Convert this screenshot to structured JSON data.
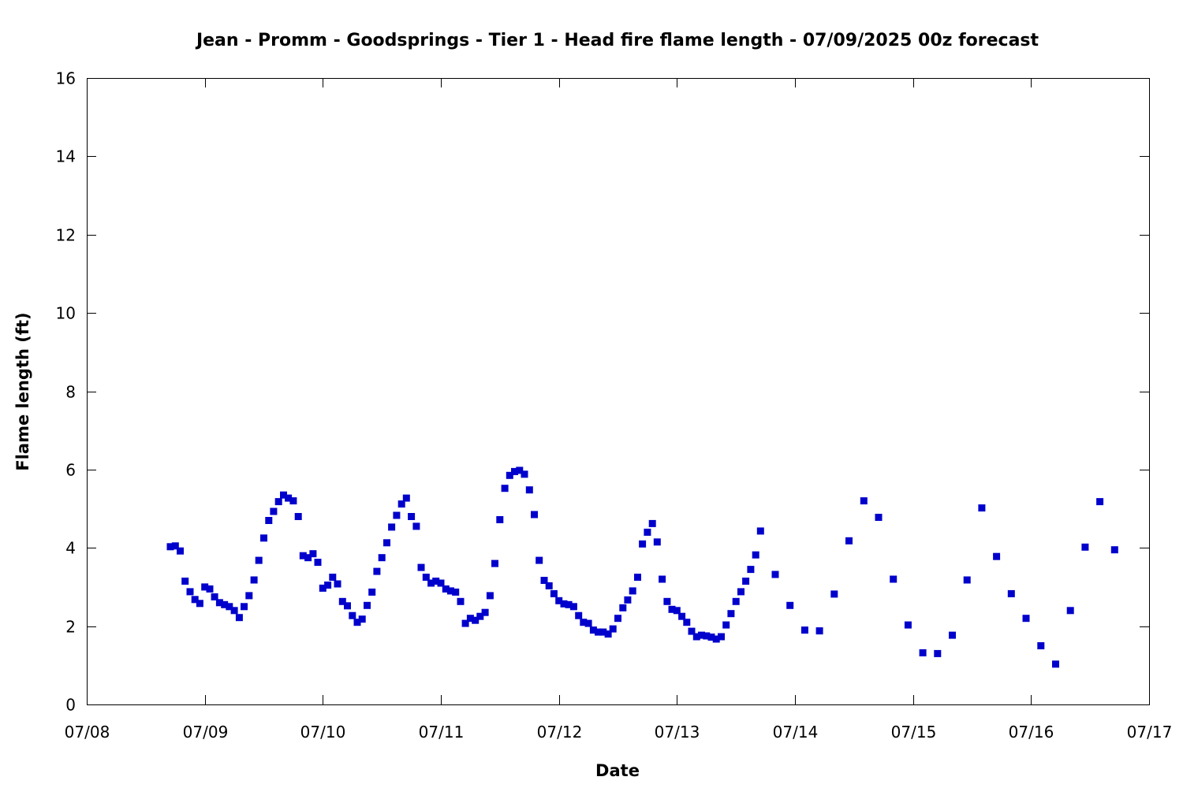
{
  "chart_data": {
    "type": "scatter",
    "title": "Jean - Promm - Goodsprings - Tier 1 - Head fire flame length - 07/09/2025 00z forecast",
    "xlabel": "Date",
    "ylabel": "Flame length (ft)",
    "xlim": [
      0,
      9
    ],
    "ylim": [
      0,
      16
    ],
    "x_ticks": [
      {
        "value": 0,
        "label": "07/08"
      },
      {
        "value": 1,
        "label": "07/09"
      },
      {
        "value": 2,
        "label": "07/10"
      },
      {
        "value": 3,
        "label": "07/11"
      },
      {
        "value": 4,
        "label": "07/12"
      },
      {
        "value": 5,
        "label": "07/13"
      },
      {
        "value": 6,
        "label": "07/14"
      },
      {
        "value": 7,
        "label": "07/15"
      },
      {
        "value": 8,
        "label": "07/16"
      },
      {
        "value": 9,
        "label": "07/17"
      }
    ],
    "y_ticks": [
      0,
      2,
      4,
      6,
      8,
      10,
      12,
      14,
      16
    ],
    "grid": false,
    "marker_color": "#0000cc",
    "x": [
      0.708,
      0.75,
      0.792,
      0.833,
      0.875,
      0.917,
      0.958,
      1.0,
      1.042,
      1.083,
      1.125,
      1.167,
      1.208,
      1.25,
      1.292,
      1.333,
      1.375,
      1.417,
      1.458,
      1.5,
      1.542,
      1.583,
      1.625,
      1.667,
      1.708,
      1.75,
      1.792,
      1.833,
      1.875,
      1.917,
      1.958,
      2.0,
      2.042,
      2.083,
      2.125,
      2.167,
      2.208,
      2.25,
      2.292,
      2.333,
      2.375,
      2.417,
      2.458,
      2.5,
      2.542,
      2.583,
      2.625,
      2.667,
      2.708,
      2.75,
      2.792,
      2.833,
      2.875,
      2.917,
      2.958,
      3.0,
      3.042,
      3.083,
      3.125,
      3.167,
      3.208,
      3.25,
      3.292,
      3.333,
      3.375,
      3.417,
      3.458,
      3.5,
      3.542,
      3.583,
      3.625,
      3.667,
      3.708,
      3.75,
      3.792,
      3.833,
      3.875,
      3.917,
      3.958,
      4.0,
      4.042,
      4.083,
      4.125,
      4.167,
      4.208,
      4.25,
      4.292,
      4.333,
      4.375,
      4.417,
      4.458,
      4.5,
      4.542,
      4.583,
      4.625,
      4.667,
      4.708,
      4.75,
      4.792,
      4.833,
      4.875,
      4.917,
      4.958,
      5.0,
      5.042,
      5.083,
      5.125,
      5.167,
      5.208,
      5.25,
      5.292,
      5.333,
      5.375,
      5.417,
      5.458,
      5.5,
      5.542,
      5.583,
      5.625,
      5.667,
      5.708,
      5.833,
      5.958,
      6.083,
      6.208,
      6.333,
      6.458,
      6.583,
      6.708,
      6.833,
      6.958,
      7.083,
      7.208,
      7.333,
      7.458,
      7.583,
      7.708,
      7.833,
      7.958,
      8.083,
      8.208,
      8.333,
      8.458,
      8.583,
      8.708
    ],
    "y": [
      4.03,
      4.05,
      3.92,
      3.15,
      2.88,
      2.68,
      2.58,
      3.0,
      2.95,
      2.75,
      2.6,
      2.55,
      2.5,
      2.4,
      2.22,
      2.5,
      2.78,
      3.18,
      3.68,
      4.25,
      4.7,
      4.93,
      5.18,
      5.35,
      5.27,
      5.2,
      4.8,
      3.8,
      3.75,
      3.85,
      3.63,
      2.97,
      3.05,
      3.25,
      3.08,
      2.63,
      2.52,
      2.27,
      2.1,
      2.18,
      2.53,
      2.87,
      3.4,
      3.75,
      4.13,
      4.53,
      4.83,
      5.12,
      5.27,
      4.8,
      4.55,
      3.5,
      3.25,
      3.1,
      3.15,
      3.1,
      2.95,
      2.9,
      2.87,
      2.63,
      2.07,
      2.2,
      2.15,
      2.25,
      2.35,
      2.78,
      3.6,
      4.72,
      5.52,
      5.85,
      5.95,
      5.98,
      5.88,
      5.48,
      4.85,
      3.68,
      3.17,
      3.03,
      2.83,
      2.65,
      2.57,
      2.55,
      2.5,
      2.27,
      2.1,
      2.07,
      1.9,
      1.85,
      1.85,
      1.8,
      1.93,
      2.2,
      2.47,
      2.67,
      2.9,
      3.25,
      4.1,
      4.4,
      4.62,
      4.15,
      3.2,
      2.63,
      2.43,
      2.4,
      2.25,
      2.1,
      1.87,
      1.73,
      1.77,
      1.75,
      1.72,
      1.67,
      1.73,
      2.03,
      2.32,
      2.63,
      2.88,
      3.15,
      3.45,
      3.82,
      4.43,
      3.32,
      2.53,
      1.9,
      1.88,
      2.82,
      4.18,
      5.2,
      4.78,
      3.2,
      2.03,
      1.32,
      1.3,
      1.77,
      3.18,
      5.02,
      3.78,
      2.83,
      2.2,
      1.5,
      1.03,
      2.4,
      4.02,
      5.18,
      3.95
    ]
  }
}
